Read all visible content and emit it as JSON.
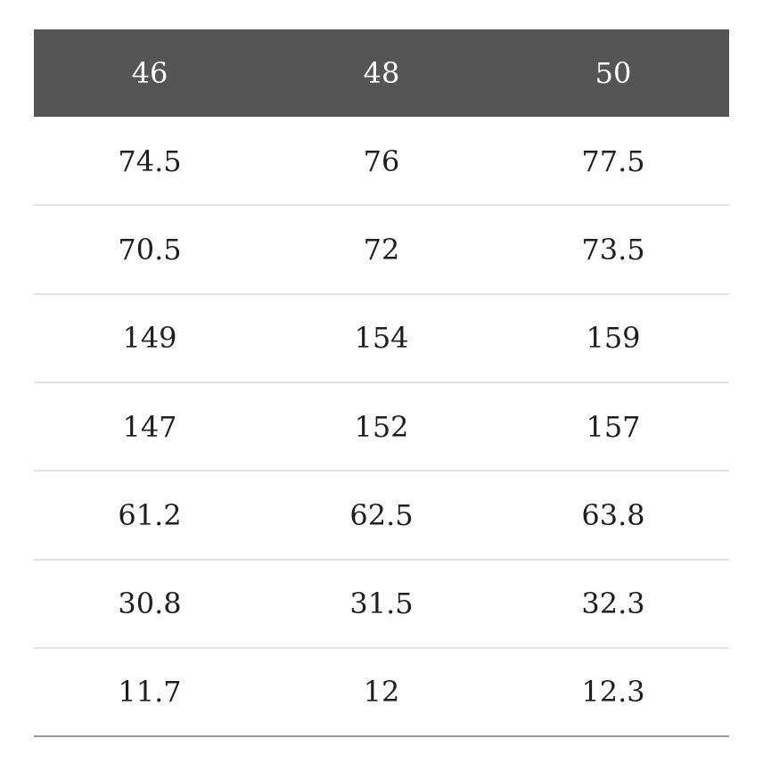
{
  "table": {
    "header": [
      "46",
      "48",
      "50"
    ],
    "rows": [
      [
        "74.5",
        "76",
        "77.5"
      ],
      [
        "70.5",
        "72",
        "73.5"
      ],
      [
        "149",
        "154",
        "159"
      ],
      [
        "147",
        "152",
        "157"
      ],
      [
        "61.2",
        "62.5",
        "63.8"
      ],
      [
        "30.8",
        "31.5",
        "32.3"
      ],
      [
        "11.7",
        "12",
        "12.3"
      ]
    ]
  }
}
